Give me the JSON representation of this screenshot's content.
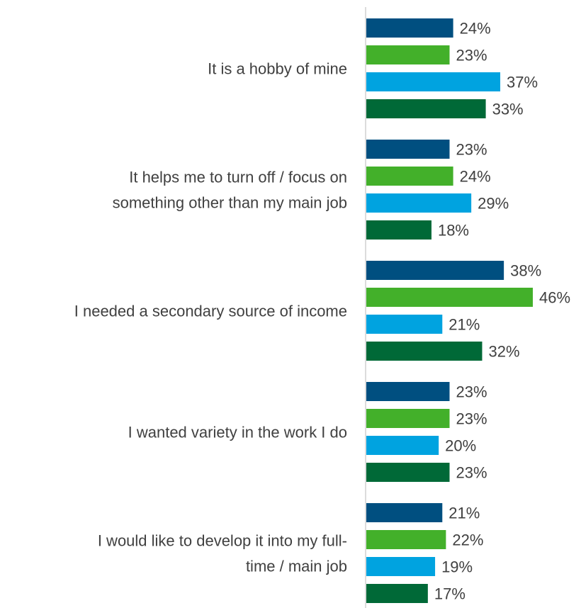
{
  "chart_data": {
    "type": "bar",
    "orientation": "horizontal",
    "title": "",
    "xlabel": "",
    "ylabel": "",
    "grid": false,
    "legend": "none",
    "categories": [
      [
        "It is a hobby of mine"
      ],
      [
        "It helps me to turn off / focus on",
        "something other than my main job"
      ],
      [
        "I needed a secondary source of income"
      ],
      [
        "I wanted variety in the work I do"
      ],
      [
        "I would like to develop it into my full-",
        "time / main job"
      ]
    ],
    "series": [
      {
        "color": "#004F80",
        "values": [
          24,
          23,
          38,
          23,
          21
        ]
      },
      {
        "color": "#43B02A",
        "values": [
          23,
          24,
          46,
          23,
          22
        ]
      },
      {
        "color": "#00A3E0",
        "values": [
          37,
          29,
          21,
          20,
          19
        ]
      },
      {
        "color": "#006937",
        "values": [
          33,
          18,
          32,
          23,
          17
        ]
      }
    ],
    "value_suffix": "%",
    "xlim": [
      0,
      50
    ]
  }
}
